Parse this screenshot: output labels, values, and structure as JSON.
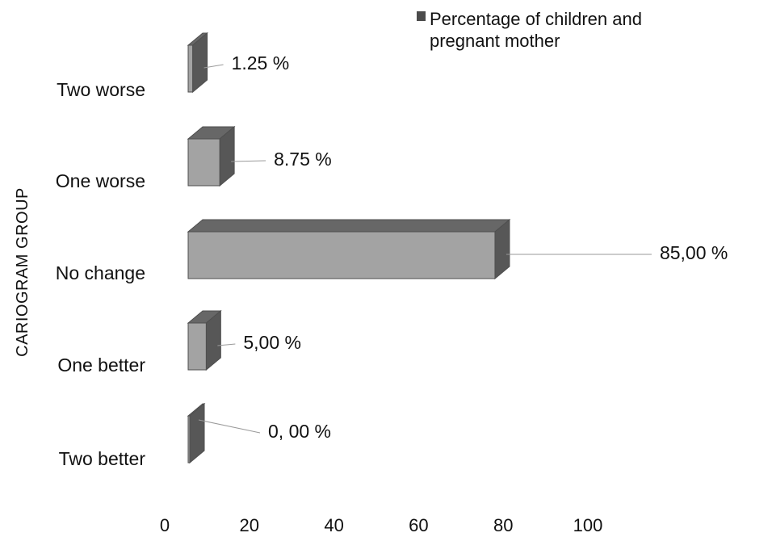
{
  "chart_data": {
    "type": "bar",
    "orientation": "horizontal",
    "style": "3d",
    "categories": [
      "Two worse",
      "One worse",
      "No change",
      "One better",
      "Two better"
    ],
    "series": [
      {
        "name": "Percentage of children and pregnant mother",
        "values": [
          1.25,
          8.75,
          85.0,
          5.0,
          0.0
        ],
        "display_labels": [
          "1.25 %",
          "8.75 %",
          "85,00 %",
          "5,00 %",
          "0, 00 %"
        ],
        "colors": {
          "front": "#a3a3a3",
          "top": "#676767",
          "side": "#575757"
        }
      }
    ],
    "title": "",
    "xlabel": "",
    "ylabel": "CARIOGRAM GROUP",
    "xlim": [
      0,
      100
    ],
    "x_ticks": [
      0,
      20,
      40,
      60,
      80,
      100
    ],
    "legend": {
      "placement": "top-right",
      "label_lines": [
        "Percentage of children and",
        "pregnant mother"
      ],
      "marker_color": "#4b4b4b"
    },
    "grid": false,
    "colors": {
      "text": "#111111",
      "leader_line": "#9a9a9a",
      "bar_outline": "#4f4f4f"
    }
  }
}
